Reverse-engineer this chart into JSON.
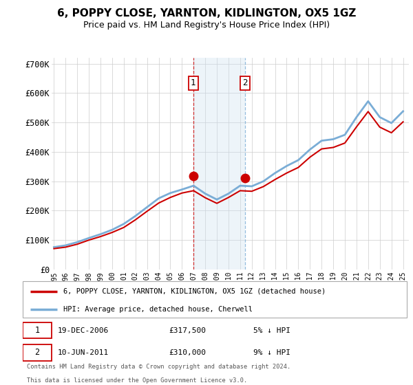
{
  "title": "6, POPPY CLOSE, YARNTON, KIDLINGTON, OX5 1GZ",
  "subtitle": "Price paid vs. HM Land Registry's House Price Index (HPI)",
  "ylim": [
    0,
    720000
  ],
  "yticks": [
    0,
    100000,
    200000,
    300000,
    400000,
    500000,
    600000,
    700000
  ],
  "ytick_labels": [
    "£0",
    "£100K",
    "£200K",
    "£300K",
    "£400K",
    "£500K",
    "£600K",
    "£700K"
  ],
  "legend_line1": "6, POPPY CLOSE, YARNTON, KIDLINGTON, OX5 1GZ (detached house)",
  "legend_line2": "HPI: Average price, detached house, Cherwell",
  "transaction1_date": "19-DEC-2006",
  "transaction1_price": "£317,500",
  "transaction1_hpi": "5% ↓ HPI",
  "transaction2_date": "10-JUN-2011",
  "transaction2_price": "£310,000",
  "transaction2_hpi": "9% ↓ HPI",
  "footnote1": "Contains HM Land Registry data © Crown copyright and database right 2024.",
  "footnote2": "This data is licensed under the Open Government Licence v3.0.",
  "line_color_red": "#cc0000",
  "line_color_blue": "#7aadd6",
  "marker_color": "#cc0000",
  "shading_color": "#cce0f0",
  "grid_color": "#cccccc",
  "years": [
    1995,
    1996,
    1997,
    1998,
    1999,
    2000,
    2001,
    2002,
    2003,
    2004,
    2005,
    2006,
    2007,
    2008,
    2009,
    2010,
    2011,
    2012,
    2013,
    2014,
    2015,
    2016,
    2017,
    2018,
    2019,
    2020,
    2021,
    2022,
    2023,
    2024,
    2025
  ],
  "hpi_values": [
    76000,
    82000,
    93000,
    107000,
    120000,
    135000,
    155000,
    182000,
    212000,
    242000,
    260000,
    272000,
    285000,
    258000,
    238000,
    258000,
    285000,
    283000,
    300000,
    328000,
    352000,
    372000,
    408000,
    438000,
    443000,
    458000,
    518000,
    572000,
    518000,
    498000,
    538000
  ],
  "red_values": [
    71000,
    76000,
    86000,
    100000,
    112000,
    126000,
    143000,
    169000,
    198000,
    226000,
    245000,
    260000,
    268000,
    244000,
    225000,
    245000,
    268000,
    266000,
    282000,
    306000,
    328000,
    347000,
    382000,
    410000,
    415000,
    430000,
    485000,
    537000,
    484000,
    465000,
    502000
  ],
  "transaction1_x": 2006.97,
  "transaction1_y": 317500,
  "transaction2_x": 2011.44,
  "transaction2_y": 310000,
  "shade_x1": 2006.97,
  "shade_x2": 2011.44,
  "xlim_left": 1994.8,
  "xlim_right": 2025.5
}
